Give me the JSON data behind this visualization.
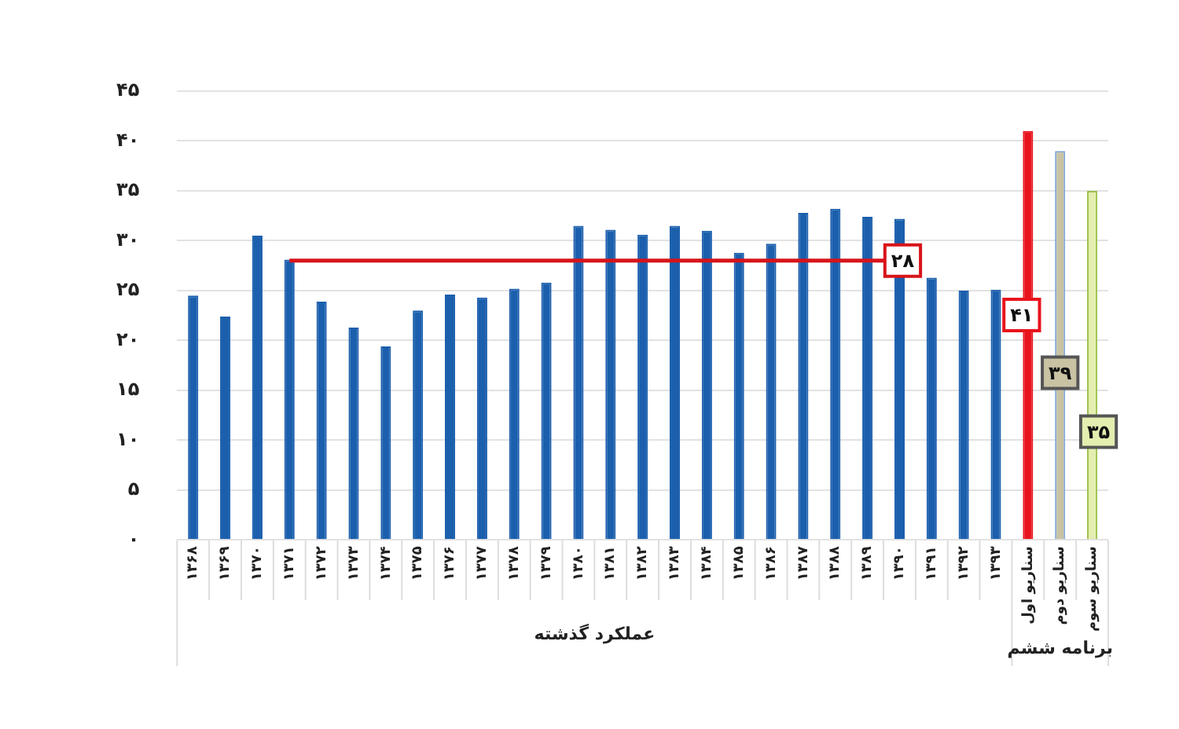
{
  "chart_data": {
    "type": "bar",
    "categories": [
      "۱۳۶۸",
      "۱۳۶۹",
      "۱۳۷۰",
      "۱۳۷۱",
      "۱۳۷۲",
      "۱۳۷۳",
      "۱۳۷۴",
      "۱۳۷۵",
      "۱۳۷۶",
      "۱۳۷۷",
      "۱۳۷۸",
      "۱۳۷۹",
      "۱۳۸۰",
      "۱۳۸۱",
      "۱۳۸۲",
      "۱۳۸۳",
      "۱۳۸۴",
      "۱۳۸۵",
      "۱۳۸۶",
      "۱۳۸۷",
      "۱۳۸۸",
      "۱۳۸۹",
      "۱۳۹۰",
      "۱۳۹۱",
      "۱۳۹۲",
      "۱۳۹۳",
      "سناریو اول",
      "سناریو دوم",
      "سناریو سوم"
    ],
    "values": [
      24.5,
      22.4,
      30.5,
      28.1,
      23.9,
      21.3,
      19.4,
      23.0,
      24.6,
      24.3,
      25.2,
      25.8,
      31.5,
      31.1,
      30.6,
      31.5,
      31.0,
      28.8,
      29.7,
      32.8,
      33.2,
      32.4,
      32.2,
      26.3,
      25.0,
      25.1,
      41,
      39,
      35
    ],
    "colors": [
      "#1b5fad",
      "#1b5fad",
      "#1b5fad",
      "#1b5fad",
      "#1b5fad",
      "#1b5fad",
      "#1b5fad",
      "#1b5fad",
      "#1b5fad",
      "#1b5fad",
      "#1b5fad",
      "#1b5fad",
      "#1b5fad",
      "#1b5fad",
      "#1b5fad",
      "#1b5fad",
      "#1b5fad",
      "#1b5fad",
      "#1b5fad",
      "#1b5fad",
      "#1b5fad",
      "#1b5fad",
      "#1b5fad",
      "#1b5fad",
      "#1b5fad",
      "#1b5fad",
      "#e8141c",
      "#c9c3a4",
      "#e4eeb0"
    ],
    "value_labels": [
      null,
      null,
      null,
      null,
      null,
      null,
      null,
      null,
      null,
      null,
      null,
      null,
      null,
      null,
      null,
      null,
      null,
      null,
      null,
      null,
      null,
      null,
      null,
      null,
      null,
      null,
      "۴۱",
      "۳۹",
      "۳۵"
    ],
    "ylim": [
      0,
      45
    ],
    "yticks": [
      {
        "value": 0,
        "label": "۰"
      },
      {
        "value": 5,
        "label": "۵"
      },
      {
        "value": 10,
        "label": "۱۰"
      },
      {
        "value": 15,
        "label": "۱۵"
      },
      {
        "value": 20,
        "label": "۲۰"
      },
      {
        "value": 25,
        "label": "۲۵"
      },
      {
        "value": 30,
        "label": "۳۰"
      },
      {
        "value": 35,
        "label": "۳۵"
      },
      {
        "value": 40,
        "label": "۴۰"
      },
      {
        "value": 45,
        "label": "۴۵"
      }
    ],
    "ref_lines": [
      {
        "axis": "y",
        "value": 28,
        "label": "۲۸",
        "color": "#d7141a"
      }
    ],
    "annotations": [
      "عملکرد گذشته",
      "برنامه ششم"
    ],
    "grid": "y",
    "legend": false
  }
}
